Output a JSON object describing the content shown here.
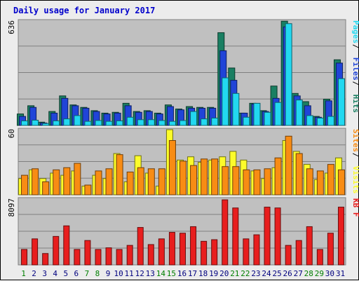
{
  "chart_data": [
    {
      "type": "bar",
      "title": "Daily usage for January 2017",
      "xlabel": "",
      "ylabel_max": "636",
      "ylim": [
        0,
        636
      ],
      "grid": true,
      "categories": [
        "1",
        "2",
        "3",
        "4",
        "5",
        "6",
        "7",
        "8",
        "9",
        "10",
        "11",
        "12",
        "13",
        "14",
        "15",
        "16",
        "17",
        "18",
        "19",
        "20",
        "21",
        "22",
        "23",
        "24",
        "25",
        "26",
        "27",
        "28",
        "29",
        "30",
        "31"
      ],
      "weekend_days": [
        "1",
        "7",
        "8",
        "14",
        "15",
        "21",
        "22",
        "28",
        "29"
      ],
      "colors": {
        "weekday_label": "#00007f",
        "weekend_label": "#007f00"
      },
      "series": [
        {
          "name": "Hits",
          "color": "#1a7f62",
          "values": [
            70,
            120,
            20,
            85,
            180,
            125,
            110,
            90,
            75,
            80,
            135,
            85,
            90,
            75,
            125,
            100,
            115,
            110,
            110,
            565,
            350,
            75,
            135,
            90,
            240,
            635,
            195,
            145,
            55,
            160,
            400
          ]
        },
        {
          "name": "Files",
          "color": "#2044d8",
          "values": [
            55,
            110,
            15,
            75,
            165,
            120,
            105,
            85,
            70,
            75,
            120,
            80,
            85,
            70,
            115,
            95,
            105,
            105,
            105,
            455,
            275,
            75,
            130,
            85,
            165,
            600,
            180,
            120,
            50,
            150,
            380
          ]
        },
        {
          "name": "Pages",
          "color": "#22d8f0",
          "values": [
            28,
            32,
            12,
            28,
            40,
            60,
            25,
            30,
            25,
            28,
            50,
            35,
            35,
            30,
            25,
            30,
            85,
            40,
            45,
            290,
            195,
            50,
            135,
            80,
            140,
            620,
            155,
            60,
            45,
            55,
            285
          ]
        }
      ]
    },
    {
      "type": "bar",
      "ylabel_max": "60",
      "ylim": [
        0,
        60
      ],
      "grid": true,
      "series": [
        {
          "name": "Visits",
          "color": "#fcfc2a",
          "values": [
            15,
            23,
            15,
            20,
            18,
            22,
            8,
            18,
            15,
            38,
            12,
            36,
            20,
            8,
            60,
            32,
            35,
            30,
            32,
            35,
            40,
            32,
            22,
            15,
            25,
            50,
            40,
            28,
            14,
            20,
            34
          ]
        },
        {
          "name": "Sites",
          "color": "#f88c14",
          "values": [
            18,
            24,
            12,
            23,
            25,
            29,
            9,
            22,
            24,
            37,
            21,
            25,
            24,
            24,
            50,
            31,
            27,
            33,
            33,
            26,
            26,
            23,
            23,
            24,
            34,
            54,
            38,
            24,
            22,
            28,
            23
          ]
        }
      ]
    },
    {
      "type": "bar",
      "ylabel_max": "8097",
      "ylim": [
        0,
        8097
      ],
      "grid": true,
      "series": [
        {
          "name": "KB F",
          "color": "#e81e1e",
          "values": [
            1900,
            3200,
            1400,
            3500,
            4800,
            1900,
            3000,
            1900,
            2100,
            1900,
            2400,
            4600,
            2500,
            3200,
            4000,
            3900,
            4700,
            2900,
            3100,
            8000,
            7000,
            3200,
            3700,
            7100,
            7000,
            2400,
            3000,
            4700,
            1900,
            3900,
            7100
          ]
        }
      ]
    }
  ]
}
